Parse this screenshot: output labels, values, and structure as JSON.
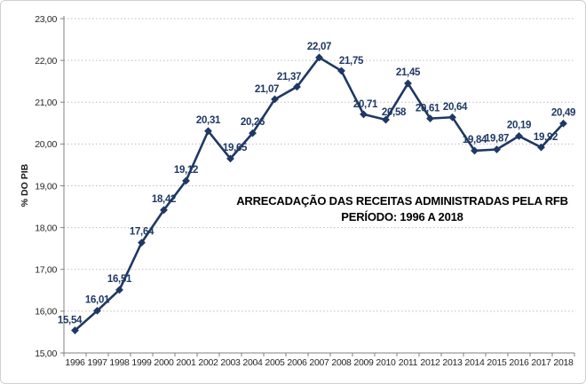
{
  "chart_data": {
    "type": "line",
    "title": "ARRECADAÇÃO DAS RECEITAS ADMINISTRADAS PELA RFB",
    "subtitle": "PERÍODO: 1996 A 2018",
    "ylabel": "% DO PIB",
    "xlabel": "",
    "categories": [
      "1996",
      "1997",
      "1998",
      "1999",
      "2000",
      "2001",
      "2002",
      "2003",
      "2004",
      "2005",
      "2006",
      "2007",
      "2008",
      "2009",
      "2010",
      "2011",
      "2012",
      "2013",
      "2014",
      "2015",
      "2016",
      "2017",
      "2018"
    ],
    "values": [
      15.54,
      16.01,
      16.51,
      17.64,
      18.42,
      19.12,
      20.31,
      19.65,
      20.26,
      21.07,
      21.37,
      22.07,
      21.75,
      20.71,
      20.58,
      21.45,
      20.61,
      20.64,
      19.84,
      19.87,
      20.19,
      19.92,
      20.49
    ],
    "point_labels": [
      "15,54",
      "16,01",
      "16,51",
      "17,64",
      "18,42",
      "19,12",
      "20,31",
      "19,65",
      "20,26",
      "21,07",
      "21,37",
      "22,07",
      "21,75",
      "20,71",
      "20,58",
      "21,45",
      "20,61",
      "20,64",
      "19,84",
      "19,87",
      "20,19",
      "19,92",
      "20,49"
    ],
    "ylim": [
      15,
      23
    ],
    "y_tick_labels": [
      "15,00",
      "16,00",
      "17,00",
      "18,00",
      "19,00",
      "20,00",
      "21,00",
      "22,00",
      "23,00"
    ],
    "y_tick_values": [
      15,
      16,
      17,
      18,
      19,
      20,
      21,
      22,
      23
    ],
    "grid": "horizontal-dotted",
    "legend": "none",
    "line_color": "#1f3864",
    "label_color": "#1f3864",
    "axis_color": "#808080",
    "grid_color": "#bdbdbd",
    "marker": "diamond"
  }
}
